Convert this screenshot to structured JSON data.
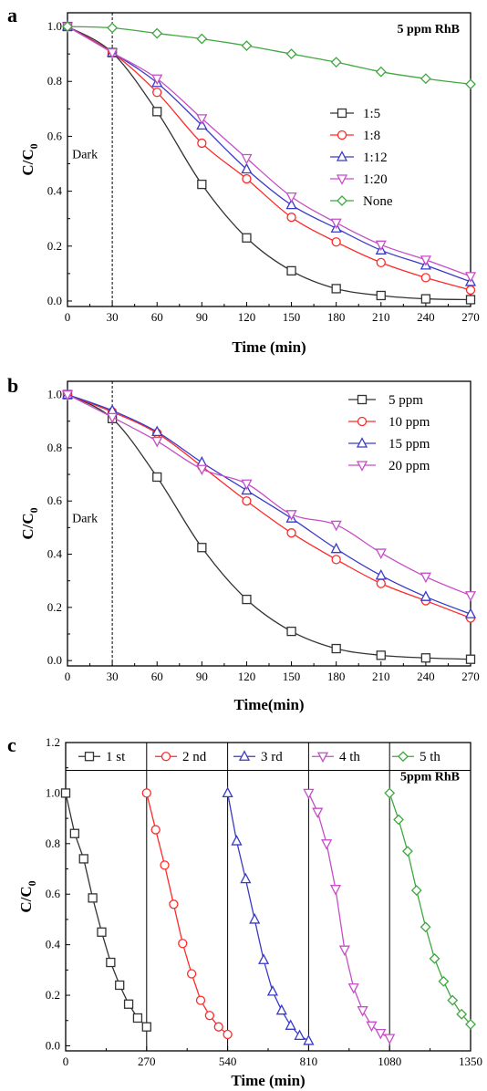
{
  "chart_data": [
    {
      "type": "line",
      "panel_label": "a",
      "xlabel": "Time (min)",
      "ylabel": "C/C",
      "ylabel_sub": "0",
      "xlim": [
        0,
        270
      ],
      "ylim": [
        -0.02,
        1.05
      ],
      "xticks": [
        0,
        30,
        60,
        90,
        120,
        150,
        180,
        210,
        240,
        270
      ],
      "yticks": [
        0.0,
        0.2,
        0.4,
        0.6,
        0.8,
        1.0
      ],
      "y_tick_decimals": 1,
      "annotations": {
        "dark": "Dark",
        "top_right": "5 ppm RhB"
      },
      "dark_line_x": 30,
      "legend_position": "center-right",
      "x": [
        0,
        30,
        60,
        90,
        120,
        150,
        180,
        210,
        240,
        270
      ],
      "series": [
        {
          "name": "1:5",
          "marker": "square",
          "color": "#333333",
          "values": [
            1.0,
            0.905,
            0.69,
            0.425,
            0.23,
            0.11,
            0.045,
            0.02,
            0.008,
            0.005
          ]
        },
        {
          "name": "1:8",
          "marker": "circle",
          "color": "#ff2a2a",
          "values": [
            1.0,
            0.905,
            0.76,
            0.575,
            0.445,
            0.305,
            0.215,
            0.14,
            0.085,
            0.04
          ]
        },
        {
          "name": "1:12",
          "marker": "triangle-up",
          "color": "#3a3ac8",
          "values": [
            1.0,
            0.905,
            0.795,
            0.64,
            0.48,
            0.35,
            0.265,
            0.185,
            0.13,
            0.07
          ]
        },
        {
          "name": "1:20",
          "marker": "triangle-down",
          "color": "#c64ec6",
          "values": [
            1.0,
            0.905,
            0.81,
            0.665,
            0.52,
            0.38,
            0.285,
            0.205,
            0.15,
            0.09
          ]
        },
        {
          "name": "None",
          "marker": "diamond",
          "color": "#3fa83f",
          "values": [
            1.0,
            0.995,
            0.975,
            0.955,
            0.93,
            0.9,
            0.87,
            0.835,
            0.81,
            0.79
          ]
        }
      ]
    },
    {
      "type": "line",
      "panel_label": "b",
      "xlabel": "Time(min)",
      "ylabel": "C/C",
      "ylabel_sub": "0",
      "xlim": [
        0,
        270
      ],
      "ylim": [
        -0.02,
        1.05
      ],
      "xticks": [
        0,
        30,
        60,
        90,
        120,
        150,
        180,
        210,
        240,
        270
      ],
      "yticks": [
        0.0,
        0.2,
        0.4,
        0.6,
        0.8,
        1.0
      ],
      "y_tick_decimals": 1,
      "annotations": {
        "dark": "Dark"
      },
      "dark_line_x": 30,
      "legend_position": "top-right",
      "x": [
        0,
        30,
        60,
        90,
        120,
        150,
        180,
        210,
        240,
        270
      ],
      "series": [
        {
          "name": "5 ppm",
          "marker": "square",
          "color": "#333333",
          "values": [
            1.0,
            0.91,
            0.69,
            0.425,
            0.23,
            0.11,
            0.045,
            0.02,
            0.01,
            0.005
          ]
        },
        {
          "name": "10 ppm",
          "marker": "circle",
          "color": "#ff2a2a",
          "values": [
            1.0,
            0.935,
            0.855,
            0.73,
            0.6,
            0.48,
            0.38,
            0.29,
            0.225,
            0.16
          ]
        },
        {
          "name": "15 ppm",
          "marker": "triangle-up",
          "color": "#3a3ac8",
          "values": [
            1.0,
            0.94,
            0.86,
            0.745,
            0.64,
            0.535,
            0.42,
            0.32,
            0.24,
            0.175
          ]
        },
        {
          "name": "20 ppm",
          "marker": "triangle-down",
          "color": "#c64ec6",
          "values": [
            1.0,
            0.915,
            0.825,
            0.72,
            0.665,
            0.55,
            0.51,
            0.405,
            0.315,
            0.245
          ]
        }
      ]
    },
    {
      "type": "line",
      "panel_label": "c",
      "xlabel": "Time (min)",
      "ylabel": "C/C",
      "ylabel_sub": "0",
      "xlim": [
        0,
        1350
      ],
      "ylim": [
        -0.02,
        1.2
      ],
      "xticks": [
        0,
        270,
        540,
        810,
        1080,
        1350
      ],
      "yticks": [
        0.0,
        0.2,
        0.4,
        0.6,
        0.8,
        1.0,
        1.2
      ],
      "y_tick_decimals": 1,
      "annotations": {
        "top_right": "5ppm RhB"
      },
      "cycle_dividers_x": [
        270,
        540,
        810,
        1080
      ],
      "legend_line_y": 1.09,
      "legend_position": "top",
      "series": [
        {
          "name": "1 st",
          "marker": "square",
          "color": "#333333",
          "x": [
            0,
            30,
            60,
            90,
            120,
            150,
            180,
            210,
            240,
            270
          ],
          "values": [
            1.0,
            0.84,
            0.74,
            0.585,
            0.45,
            0.33,
            0.24,
            0.165,
            0.11,
            0.075
          ]
        },
        {
          "name": "2 nd",
          "marker": "circle",
          "color": "#ff2a2a",
          "x": [
            270,
            300,
            330,
            360,
            390,
            420,
            450,
            480,
            510,
            540
          ],
          "values": [
            1.0,
            0.855,
            0.715,
            0.56,
            0.405,
            0.285,
            0.18,
            0.12,
            0.075,
            0.045
          ]
        },
        {
          "name": "3 rd",
          "marker": "triangle-up",
          "color": "#3a3ac8",
          "x": [
            540,
            570,
            600,
            630,
            660,
            690,
            720,
            750,
            780,
            810
          ],
          "values": [
            1.0,
            0.81,
            0.66,
            0.5,
            0.34,
            0.215,
            0.14,
            0.08,
            0.04,
            0.02
          ]
        },
        {
          "name": "4 th",
          "marker": "triangle-down",
          "color": "#c64ec6",
          "x": [
            810,
            840,
            870,
            900,
            930,
            960,
            990,
            1020,
            1050,
            1080
          ],
          "values": [
            1.0,
            0.925,
            0.8,
            0.62,
            0.38,
            0.23,
            0.14,
            0.08,
            0.05,
            0.03
          ]
        },
        {
          "name": "5 th",
          "marker": "diamond",
          "color": "#3fa83f",
          "x": [
            1080,
            1110,
            1140,
            1170,
            1200,
            1230,
            1260,
            1290,
            1320,
            1350
          ],
          "values": [
            1.0,
            0.895,
            0.77,
            0.615,
            0.47,
            0.345,
            0.255,
            0.18,
            0.125,
            0.085
          ]
        }
      ]
    }
  ]
}
